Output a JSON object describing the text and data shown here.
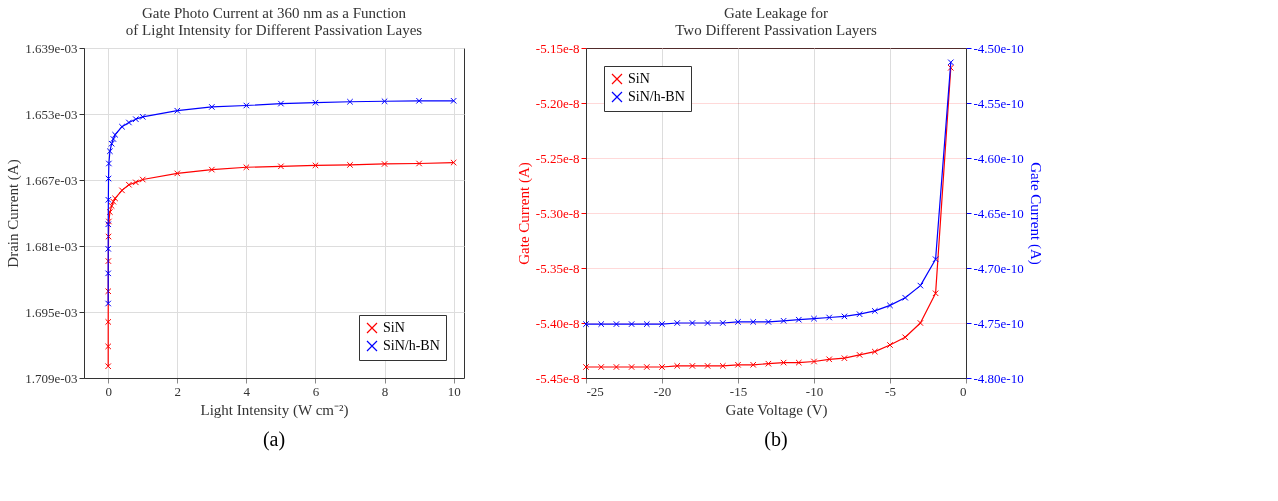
{
  "chart_data": [
    {
      "type": "line",
      "title": "Gate Photo Current at 360 nm as a Function\nof Light Intensity for Different Passivation Layes",
      "xlabel": "Light Intensity (W cm⁻²)",
      "ylabel": "Drain Current (A)",
      "annotations": [
        "(a)"
      ],
      "xlim": [
        -0.7,
        10.3
      ],
      "xticks": [
        0,
        2,
        4,
        6,
        8,
        10
      ],
      "ylim": [
        0.001709,
        0.001639
      ],
      "yticks": [
        {
          "value": 0.001639,
          "label": "1.639e-03"
        },
        {
          "value": 0.001653,
          "label": "1.653e-03"
        },
        {
          "value": 0.001667,
          "label": "1.667e-03"
        },
        {
          "value": 0.001681,
          "label": "1.681e-03"
        },
        {
          "value": 0.001695,
          "label": "1.695e-03"
        },
        {
          "value": 0.001709,
          "label": "1.709e-03"
        }
      ],
      "grid": true,
      "legend": "bottom right",
      "marker": "cross",
      "line_style": "solid",
      "series": [
        {
          "name": "SiN",
          "color": "#ff0000",
          "x": [
            0.0001,
            0.0005,
            0.001,
            0.002,
            0.005,
            0.01,
            0.02,
            0.05,
            0.1,
            0.15,
            0.2,
            0.4,
            0.6,
            0.8,
            1,
            2,
            3,
            4,
            5,
            6,
            7,
            8,
            9,
            10
          ],
          "values": [
            0.0017065,
            0.0017023,
            0.0016971,
            0.0016906,
            0.0016842,
            0.001679,
            0.0016758,
            0.0016738,
            0.0016725,
            0.0016716,
            0.0016709,
            0.0016692,
            0.001668,
            0.0016675,
            0.0016669,
            0.0016656,
            0.0016648,
            0.0016643,
            0.0016641,
            0.0016639,
            0.0016638,
            0.0016636,
            0.0016635,
            0.0016633
          ]
        },
        {
          "name": "SiN/h-BN",
          "color": "#0000ff",
          "x": [
            0.0001,
            0.0005,
            0.001,
            0.002,
            0.005,
            0.01,
            0.02,
            0.05,
            0.1,
            0.15,
            0.2,
            0.4,
            0.6,
            0.8,
            1,
            2,
            3,
            4,
            5,
            6,
            7,
            8,
            9,
            10
          ],
          "values": [
            0.0016932,
            0.0016868,
            0.0016816,
            0.0016764,
            0.0016712,
            0.0016667,
            0.0016635,
            0.0016609,
            0.0016593,
            0.0016583,
            0.0016574,
            0.0016557,
            0.0016548,
            0.0016541,
            0.0016536,
            0.0016523,
            0.0016515,
            0.0016512,
            0.0016508,
            0.0016506,
            0.0016504,
            0.0016503,
            0.0016502,
            0.0016502
          ]
        }
      ]
    },
    {
      "type": "line",
      "title": "Gate Leakage for\nTwo Different Passivation Layers",
      "xlabel": "Gate Voltage (V)",
      "ylabel": "Gate Current (A)",
      "y2label": "Gate Current (A)",
      "annotations": [
        "(b)"
      ],
      "xlim": [
        -25,
        0
      ],
      "xticks": [
        -25,
        -20,
        -15,
        -10,
        -5,
        0
      ],
      "ylim": [
        -5.45e-08,
        -5.15e-08
      ],
      "yticks": [
        {
          "value": -5.45e-08,
          "label": "-5.45e-8"
        },
        {
          "value": -5.4e-08,
          "label": "-5.40e-8"
        },
        {
          "value": -5.35e-08,
          "label": "-5.35e-8"
        },
        {
          "value": -5.3e-08,
          "label": "-5.30e-8"
        },
        {
          "value": -5.25e-08,
          "label": "-5.25e-8"
        },
        {
          "value": -5.2e-08,
          "label": "-5.20e-8"
        },
        {
          "value": -5.15e-08,
          "label": "-5.15e-8"
        }
      ],
      "y2lim": [
        -4.8e-10,
        -4.5e-10
      ],
      "y2ticks": [
        {
          "value": -4.8e-10,
          "label": "-4.80e-10"
        },
        {
          "value": -4.75e-10,
          "label": "-4.75e-10"
        },
        {
          "value": -4.7e-10,
          "label": "-4.70e-10"
        },
        {
          "value": -4.65e-10,
          "label": "-4.65e-10"
        },
        {
          "value": -4.6e-10,
          "label": "-4.60e-10"
        },
        {
          "value": -4.55e-10,
          "label": "-4.55e-10"
        },
        {
          "value": -4.5e-10,
          "label": "-4.50e-10"
        }
      ],
      "grid": true,
      "legend": "top left",
      "marker": "cross",
      "line_style": "solid",
      "x": [
        -25,
        -24,
        -23,
        -22,
        -21,
        -20,
        -19,
        -18,
        -17,
        -16,
        -15,
        -14,
        -13,
        -12,
        -11,
        -10,
        -9,
        -8,
        -7,
        -6,
        -5,
        -4,
        -3,
        -2,
        -1
      ],
      "series": [
        {
          "name": "SiN",
          "color": "#ff0000",
          "values": [
            -5.44e-08,
            -5.44e-08,
            -5.44e-08,
            -5.44e-08,
            -5.44e-08,
            -5.44e-08,
            -5.439e-08,
            -5.439e-08,
            -5.439e-08,
            -5.439e-08,
            -5.438e-08,
            -5.438e-08,
            -5.437e-08,
            -5.436e-08,
            -5.436e-08,
            -5.435e-08,
            -5.433e-08,
            -5.432e-08,
            -5.429e-08,
            -5.426e-08,
            -5.42e-08,
            -5.413e-08,
            -5.4e-08,
            -5.373e-08,
            -5.168e-08
          ]
        },
        {
          "name": "SiN/h-BN",
          "color": "#0000ff",
          "axis": "y2",
          "values": [
            -4.751e-10,
            -4.751e-10,
            -4.751e-10,
            -4.751e-10,
            -4.751e-10,
            -4.751e-10,
            -4.75e-10,
            -4.75e-10,
            -4.75e-10,
            -4.75e-10,
            -4.749e-10,
            -4.749e-10,
            -4.749e-10,
            -4.748e-10,
            -4.747e-10,
            -4.746e-10,
            -4.745e-10,
            -4.744e-10,
            -4.742e-10,
            -4.739e-10,
            -4.734e-10,
            -4.727e-10,
            -4.716e-10,
            -4.692e-10,
            -4.513e-10
          ]
        }
      ]
    }
  ]
}
